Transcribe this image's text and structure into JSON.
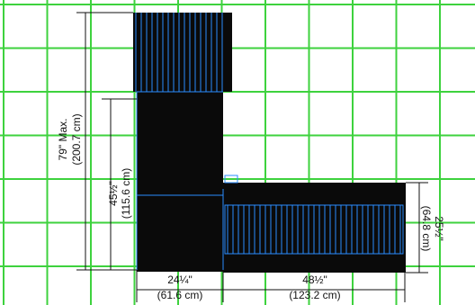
{
  "dimensions": [
    {
      "imperial": "79\" Max.",
      "metric": "(200.7 cm)"
    },
    {
      "imperial": "45½\"",
      "metric": "(115.6 cm)"
    },
    {
      "imperial": "24¼\"",
      "metric": "(61.6 cm)"
    },
    {
      "imperial": "48½\"",
      "metric": "(123.2 cm)"
    },
    {
      "imperial": "25½\"",
      "metric": "(64.8 cm)"
    }
  ]
}
